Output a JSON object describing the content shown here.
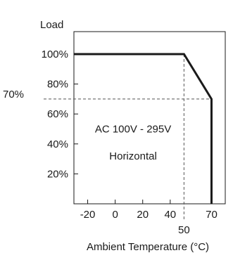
{
  "chart_data": {
    "type": "line",
    "ylabel": "Load",
    "xlabel": "Ambient Temperature (°C)",
    "xlim": [
      -30,
      80
    ],
    "ylim": [
      0,
      115
    ],
    "x_ticks": [
      {
        "value": -20,
        "label": "-20"
      },
      {
        "value": 0,
        "label": "0"
      },
      {
        "value": 20,
        "label": "20"
      },
      {
        "value": 40,
        "label": "40"
      },
      {
        "value": 70,
        "label": "70"
      }
    ],
    "x_extra_tick": {
      "value": 50,
      "label": "50"
    },
    "y_ticks": [
      {
        "value": 20,
        "label": "20%"
      },
      {
        "value": 40,
        "label": "40%"
      },
      {
        "value": 60,
        "label": "60%"
      },
      {
        "value": 80,
        "label": "80%"
      },
      {
        "value": 100,
        "label": "100%"
      }
    ],
    "y_extra_tick": {
      "value": 70,
      "label": "70%"
    },
    "grid": false,
    "series": [
      {
        "x": [
          -30,
          50,
          70,
          70
        ],
        "y": [
          100,
          100,
          70,
          0
        ]
      }
    ],
    "reference_lines": [
      {
        "orientation": "vertical",
        "x": 50,
        "style": "dashed"
      },
      {
        "orientation": "horizontal",
        "y": 70,
        "style": "dashed"
      }
    ],
    "annotations": [
      {
        "text": "AC 100V - 295V",
        "x": 13,
        "y": 50
      },
      {
        "text": "Horizontal",
        "x": 13,
        "y": 32
      }
    ],
    "colors": {
      "curve": "#1a1a1a",
      "frame": "#1a1a1a",
      "dashed": "#555555"
    }
  }
}
